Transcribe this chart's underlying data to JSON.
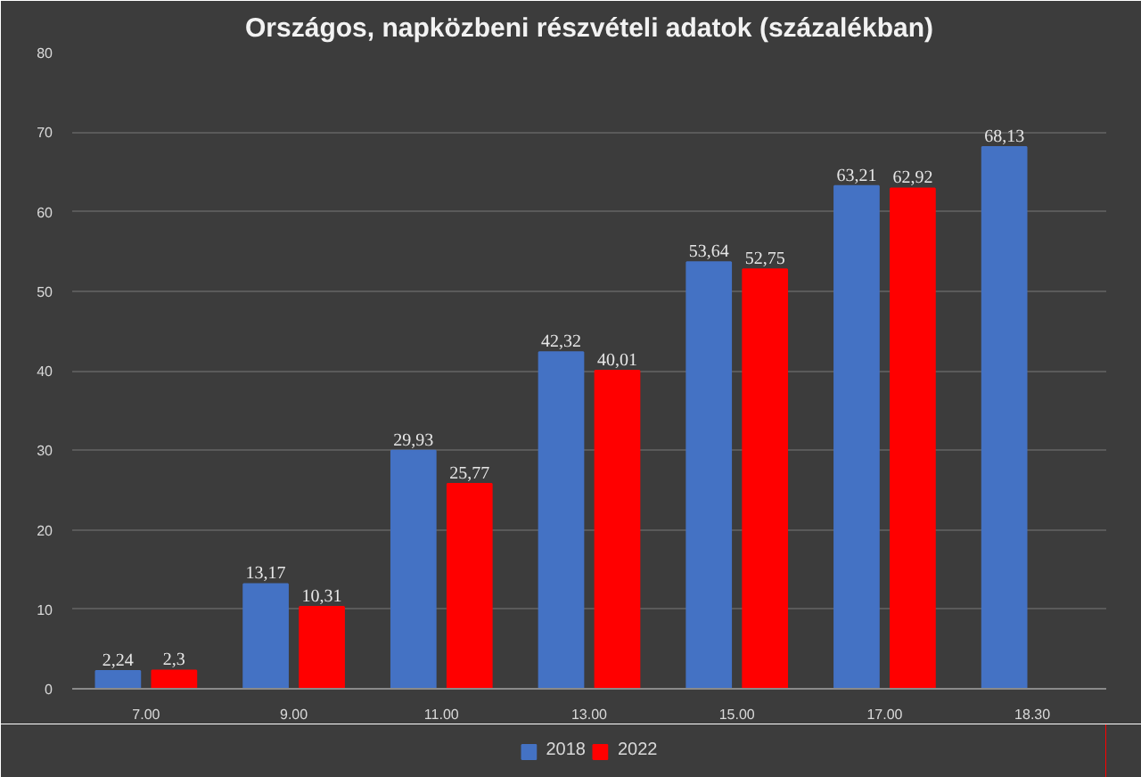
{
  "chart_data": {
    "type": "bar",
    "title": "Országos, napközbeni részvételi adatok (százalékban)",
    "categories": [
      "7.00",
      "9.00",
      "11.00",
      "13.00",
      "15.00",
      "17.00",
      "18.30"
    ],
    "series": [
      {
        "name": "2018",
        "color": "#4472c4",
        "values": [
          2.24,
          13.17,
          29.93,
          42.32,
          53.64,
          63.21,
          68.13
        ],
        "value_labels": [
          "2,24",
          "13,17",
          "29,93",
          "42,32",
          "53,64",
          "63,21",
          "68,13"
        ]
      },
      {
        "name": "2022",
        "color": "#ff0000",
        "values": [
          2.3,
          10.31,
          25.77,
          40.01,
          52.75,
          62.92,
          null
        ],
        "value_labels": [
          "2,3",
          "10,31",
          "25,77",
          "40,01",
          "52,75",
          "62,92",
          null
        ]
      }
    ],
    "ylim": [
      0,
      80
    ],
    "yticks": [
      0,
      10,
      20,
      30,
      40,
      50,
      60,
      70,
      80
    ],
    "grid": "y",
    "legend": "bottom"
  }
}
